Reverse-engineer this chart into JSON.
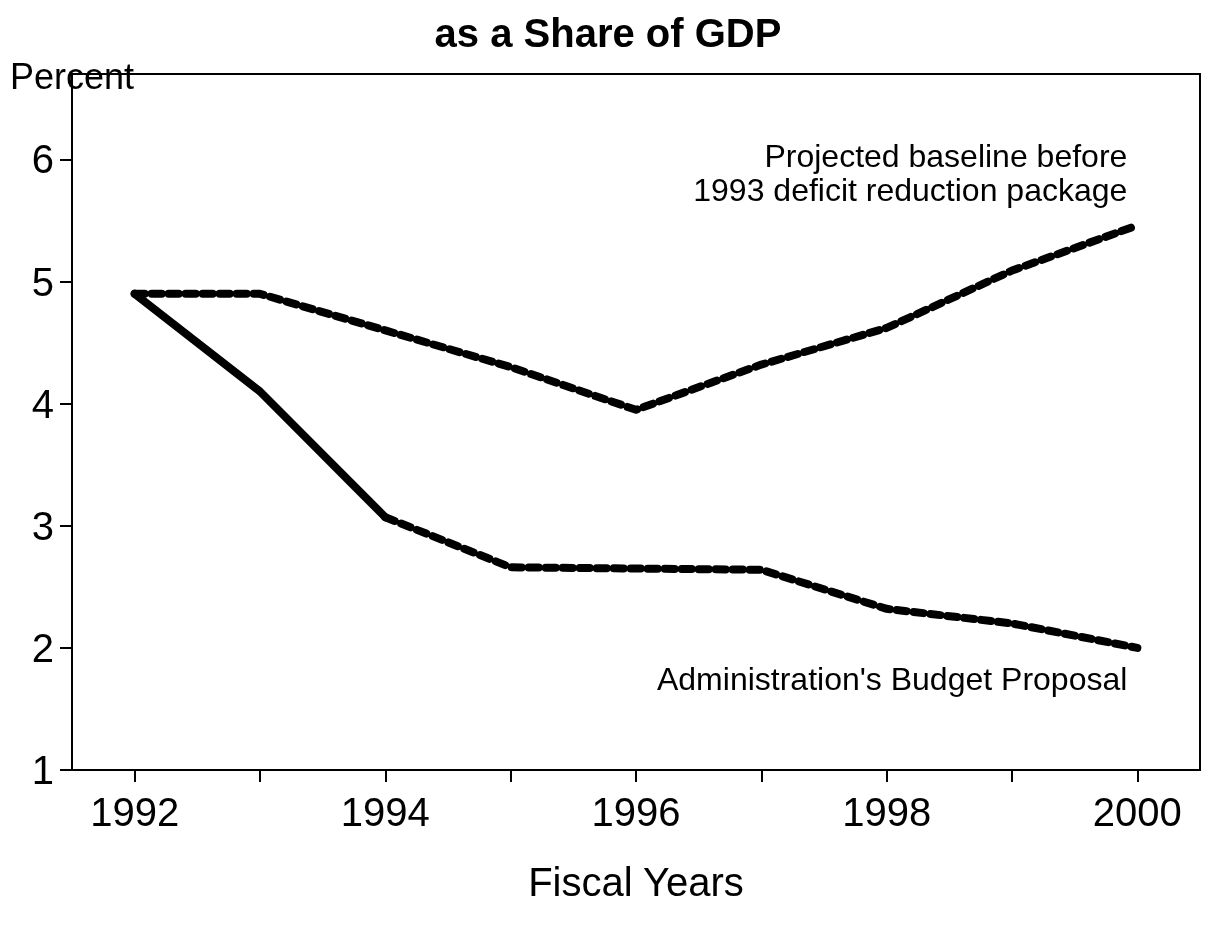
{
  "chart_data": {
    "type": "line",
    "title": "as a Share of GDP",
    "ylabel": "Percent",
    "xlabel": "Fiscal Years",
    "xlim": [
      1991.5,
      2000.5
    ],
    "xticks": [
      1992,
      {
        "value": 1993,
        "label": null
      },
      1994,
      {
        "value": 1995,
        "label": null
      },
      1996,
      {
        "value": 1997,
        "label": null
      },
      1998,
      {
        "value": 1999,
        "label": null
      },
      2000
    ],
    "ylim": [
      1,
      6.7
    ],
    "yticks": [
      1,
      2,
      3,
      4,
      5,
      6
    ],
    "grid": false,
    "legend": false,
    "marker": "none",
    "series": [
      {
        "name": "Projected baseline before\n1993 deficit reduction package",
        "color": "#000000",
        "line_style": "dashed",
        "x": [
          1992,
          1993,
          1994,
          1995,
          1996,
          1997,
          1998,
          1999,
          2000
        ],
        "values": [
          4.9,
          4.9,
          4.6,
          4.3,
          3.95,
          4.32,
          4.62,
          5.09,
          5.46
        ]
      },
      {
        "color": "#000000",
        "line_style": "solid",
        "x": [
          1992,
          1993,
          1994
        ],
        "values": [
          4.9,
          4.1,
          3.07
        ]
      },
      {
        "name": "Administration's Budget Proposal",
        "color": "#000000",
        "line_style": "dashed",
        "x": [
          1994,
          1995,
          1996,
          1997,
          1998,
          1999,
          2000
        ],
        "values": [
          3.07,
          2.66,
          2.65,
          2.64,
          2.32,
          2.2,
          2.0
        ]
      }
    ]
  }
}
